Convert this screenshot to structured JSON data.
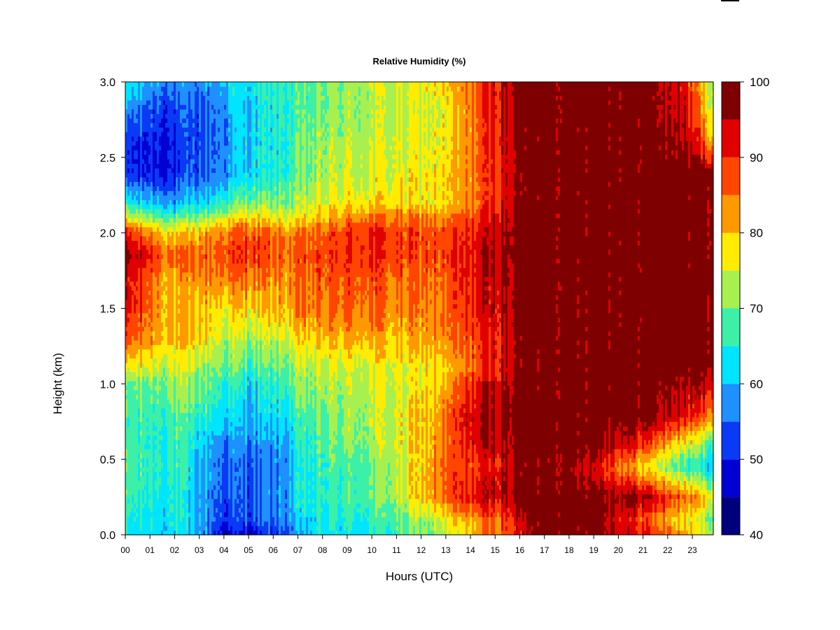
{
  "chart_data": {
    "type": "heatmap",
    "title": "Relative Humidity (%)",
    "xlabel": "Hours (UTC)",
    "ylabel": "Height (km)",
    "x_ticks": [
      "00",
      "01",
      "02",
      "03",
      "04",
      "05",
      "06",
      "07",
      "08",
      "09",
      "10",
      "11",
      "12",
      "13",
      "14",
      "15",
      "16",
      "17",
      "18",
      "19",
      "20",
      "21",
      "22",
      "23"
    ],
    "xlim": [
      0,
      23.85
    ],
    "y_ticks": [
      "0.0",
      "0.5",
      "1.0",
      "1.5",
      "2.0",
      "2.5",
      "3.0"
    ],
    "ylim": [
      0,
      3.0
    ],
    "colorbar": {
      "levels": [
        40,
        45,
        50,
        55,
        60,
        65,
        70,
        75,
        80,
        85,
        90,
        95,
        100
      ],
      "labels": [
        "40",
        "50",
        "60",
        "70",
        "80",
        "90",
        "100"
      ],
      "colors": [
        "#00007F",
        "#0000D4",
        "#0A3AF5",
        "#1E90FF",
        "#00E5FF",
        "#3CF0A8",
        "#A8F050",
        "#FFEC00",
        "#FF9900",
        "#FF4500",
        "#E00000",
        "#7F0000"
      ]
    },
    "grid": false,
    "profile_time_hours": [
      0,
      2,
      3.2,
      4,
      5,
      6.2,
      7,
      8,
      10,
      11,
      13,
      14,
      15.5,
      16.2,
      17,
      19,
      21,
      22.7,
      23.85
    ],
    "profile_height_km": [
      0.0,
      0.1,
      0.25,
      0.45,
      0.6,
      0.8,
      1.0,
      1.1,
      1.3,
      1.5,
      1.7,
      1.85,
      2.0,
      2.1,
      2.2,
      2.4,
      2.6,
      2.8,
      3.0
    ],
    "rh_percent": [
      [
        62,
        62,
        57,
        46,
        47,
        52,
        57,
        62,
        64,
        66,
        73,
        80,
        88,
        93,
        99,
        99,
        91,
        82,
        74
      ],
      [
        64,
        64,
        58,
        52,
        53,
        55,
        60,
        64,
        66,
        68,
        76,
        82,
        88,
        96,
        99,
        99,
        88,
        78,
        70
      ],
      [
        66,
        64,
        58,
        54,
        54,
        57,
        62,
        66,
        69,
        73,
        86,
        92,
        96,
        98,
        99,
        99,
        96,
        86,
        78
      ],
      [
        68,
        66,
        59,
        55,
        54,
        56,
        62,
        66,
        69,
        73,
        86,
        88,
        94,
        98,
        99,
        94,
        78,
        66,
        62
      ],
      [
        66,
        66,
        61,
        57,
        56,
        58,
        63,
        68,
        72,
        75,
        84,
        92,
        96,
        99,
        99,
        99,
        90,
        76,
        68
      ],
      [
        66,
        68,
        66,
        63,
        60,
        62,
        66,
        70,
        73,
        75,
        84,
        93,
        98,
        99,
        99,
        99,
        99,
        92,
        86
      ],
      [
        68,
        72,
        70,
        66,
        63,
        66,
        70,
        72,
        75,
        75,
        80,
        90,
        96,
        99,
        99,
        99,
        99,
        96,
        94
      ],
      [
        76,
        74,
        72,
        70,
        67,
        68,
        72,
        74,
        75,
        76,
        78,
        86,
        94,
        98,
        99,
        99,
        99,
        99,
        99
      ],
      [
        86,
        80,
        78,
        74,
        73,
        74,
        77,
        80,
        82,
        80,
        83,
        88,
        94,
        98,
        99,
        99,
        99,
        99,
        99
      ],
      [
        92,
        80,
        80,
        78,
        79,
        80,
        84,
        85,
        86,
        83,
        85,
        90,
        95,
        99,
        99,
        99,
        99,
        99,
        99
      ],
      [
        92,
        80,
        84,
        85,
        85,
        83,
        84,
        86,
        88,
        85,
        86,
        91,
        96,
        99,
        99,
        99,
        99,
        99,
        99
      ],
      [
        96,
        86,
        86,
        88,
        89,
        86,
        86,
        88,
        90,
        88,
        88,
        92,
        97,
        99,
        99,
        99,
        99,
        99,
        99
      ],
      [
        90,
        78,
        82,
        85,
        88,
        84,
        84,
        86,
        92,
        88,
        87,
        90,
        96,
        99,
        99,
        99,
        99,
        99,
        99
      ],
      [
        76,
        68,
        72,
        76,
        80,
        76,
        77,
        80,
        86,
        85,
        84,
        88,
        95,
        99,
        99,
        99,
        99,
        99,
        99
      ],
      [
        64,
        58,
        62,
        67,
        70,
        70,
        72,
        76,
        79,
        78,
        78,
        84,
        93,
        98,
        99,
        99,
        99,
        99,
        99
      ],
      [
        50,
        50,
        54,
        57,
        62,
        64,
        68,
        72,
        75,
        76,
        78,
        84,
        93,
        98,
        99,
        99,
        99,
        99,
        99
      ],
      [
        50,
        50,
        54,
        57,
        62,
        64,
        68,
        72,
        74,
        75,
        77,
        84,
        94,
        98,
        99,
        99,
        99,
        96,
        82
      ],
      [
        56,
        52,
        54,
        58,
        62,
        64,
        67,
        70,
        73,
        74,
        76,
        84,
        95,
        98,
        99,
        99,
        99,
        93,
        76
      ],
      [
        64,
        56,
        58,
        62,
        63,
        66,
        67,
        70,
        74,
        75,
        78,
        86,
        95,
        98,
        99,
        99,
        99,
        92,
        72
      ]
    ]
  }
}
